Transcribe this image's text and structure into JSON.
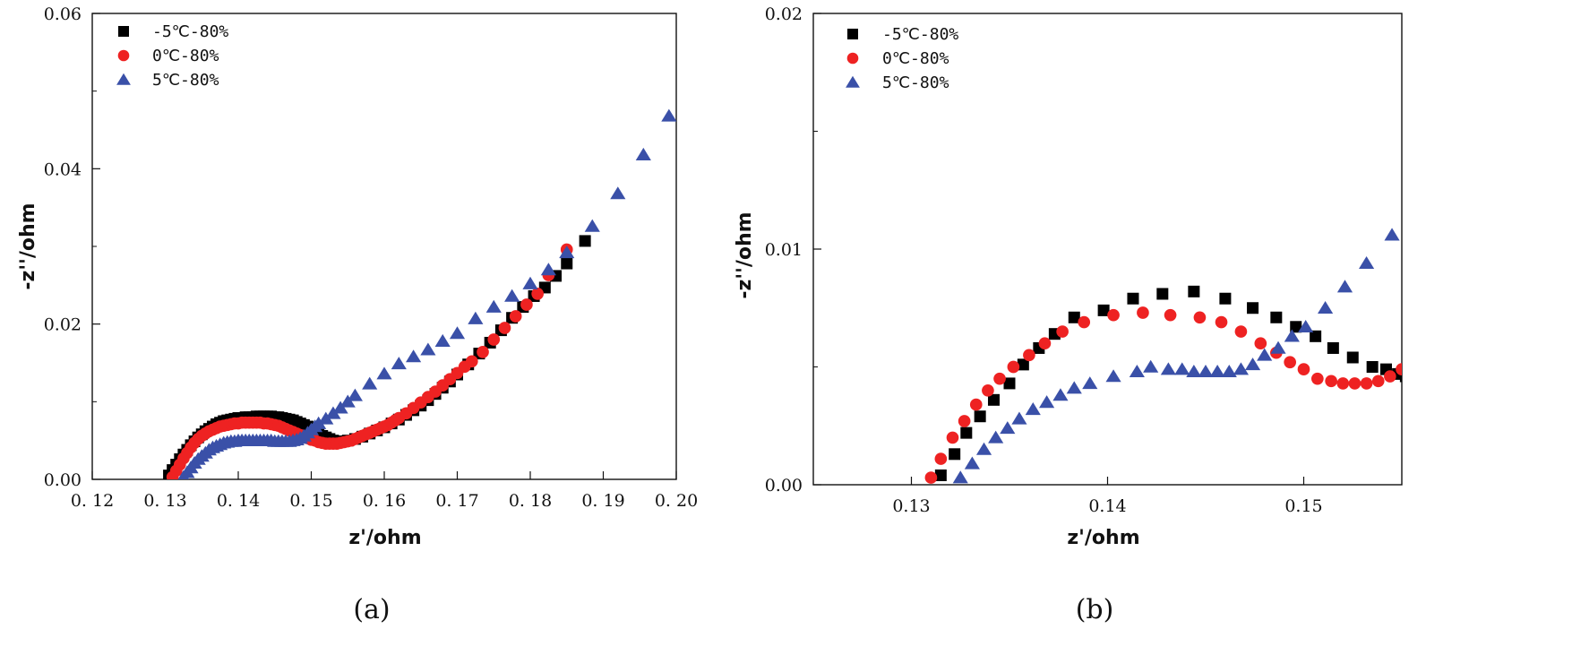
{
  "chart_data": [
    {
      "type": "scatter",
      "panel_label": "(a)",
      "xlabel": "z'/ohm",
      "ylabel": "-z''/ohm",
      "xlim": [
        0.12,
        0.2
      ],
      "ylim": [
        0.0,
        0.06
      ],
      "xticks": [
        "0. 12",
        "0. 13",
        "0. 14",
        "0. 15",
        "0. 16",
        "0. 17",
        "0. 18",
        "0. 19",
        "0. 20"
      ],
      "yticks": [
        "0.00",
        "0.02",
        "0.04",
        "0.06"
      ],
      "legend_position": "top-left",
      "series": [
        {
          "name": "-5℃-80%",
          "marker": "square",
          "color": "#000000",
          "x": [
            0.1305,
            0.131,
            0.1315,
            0.132,
            0.1325,
            0.133,
            0.1335,
            0.134,
            0.1345,
            0.135,
            0.1355,
            0.136,
            0.1365,
            0.137,
            0.1375,
            0.138,
            0.1385,
            0.139,
            0.1395,
            0.14,
            0.1405,
            0.141,
            0.1415,
            0.142,
            0.1425,
            0.143,
            0.1435,
            0.144,
            0.1445,
            0.145,
            0.1455,
            0.146,
            0.1465,
            0.147,
            0.1475,
            0.148,
            0.1485,
            0.149,
            0.1495,
            0.15,
            0.1505,
            0.151,
            0.1515,
            0.152,
            0.1525,
            0.153,
            0.154,
            0.155,
            0.156,
            0.157,
            0.158,
            0.159,
            0.16,
            0.161,
            0.162,
            0.163,
            0.164,
            0.165,
            0.166,
            0.167,
            0.168,
            0.169,
            0.17,
            0.1715,
            0.173,
            0.1745,
            0.176,
            0.1775,
            0.179,
            0.1805,
            0.182,
            0.1835,
            0.185,
            0.1875
          ],
          "y": [
            0.0005,
            0.0012,
            0.0019,
            0.0026,
            0.0032,
            0.0038,
            0.0044,
            0.0049,
            0.0054,
            0.0058,
            0.0062,
            0.0065,
            0.0068,
            0.0071,
            0.0073,
            0.0075,
            0.0076,
            0.0077,
            0.0078,
            0.0079,
            0.0079,
            0.008,
            0.008,
            0.008,
            0.0081,
            0.0081,
            0.0081,
            0.0081,
            0.0081,
            0.008,
            0.008,
            0.0079,
            0.0078,
            0.0077,
            0.0076,
            0.0074,
            0.0072,
            0.007,
            0.0068,
            0.0065,
            0.0062,
            0.0059,
            0.0056,
            0.0054,
            0.0052,
            0.005,
            0.0049,
            0.005,
            0.0052,
            0.0055,
            0.0059,
            0.0063,
            0.0067,
            0.0072,
            0.0077,
            0.0083,
            0.0089,
            0.0095,
            0.0102,
            0.011,
            0.0118,
            0.0126,
            0.0135,
            0.0148,
            0.0162,
            0.0176,
            0.0192,
            0.0208,
            0.0222,
            0.0236,
            0.0247,
            0.0262,
            0.0278,
            0.0307
          ]
        },
        {
          "name": "0℃-80%",
          "marker": "circle",
          "color": "#ee2222",
          "x": [
            0.131,
            0.1315,
            0.132,
            0.1325,
            0.133,
            0.1335,
            0.134,
            0.1345,
            0.135,
            0.1355,
            0.136,
            0.1365,
            0.137,
            0.1375,
            0.138,
            0.1385,
            0.139,
            0.1395,
            0.14,
            0.1405,
            0.141,
            0.1415,
            0.142,
            0.1425,
            0.143,
            0.1435,
            0.144,
            0.1445,
            0.145,
            0.1455,
            0.146,
            0.1465,
            0.147,
            0.1475,
            0.148,
            0.1485,
            0.149,
            0.1495,
            0.15,
            0.1505,
            0.151,
            0.1515,
            0.152,
            0.1525,
            0.153,
            0.1535,
            0.154,
            0.1545,
            0.155,
            0.1555,
            0.156,
            0.1565,
            0.157,
            0.1575,
            0.158,
            0.1585,
            0.159,
            0.1595,
            0.16,
            0.1605,
            0.161,
            0.1615,
            0.162,
            0.163,
            0.164,
            0.165,
            0.166,
            0.167,
            0.168,
            0.169,
            0.17,
            0.171,
            0.172,
            0.1735,
            0.175,
            0.1765,
            0.178,
            0.1795,
            0.181,
            0.1825,
            0.185
          ],
          "y": [
            0.0003,
            0.0011,
            0.0019,
            0.0027,
            0.0034,
            0.0041,
            0.0047,
            0.0052,
            0.0056,
            0.0059,
            0.0062,
            0.0064,
            0.0066,
            0.0068,
            0.0069,
            0.007,
            0.0071,
            0.0072,
            0.0072,
            0.0073,
            0.0073,
            0.0073,
            0.0073,
            0.0073,
            0.0073,
            0.0072,
            0.0072,
            0.0071,
            0.007,
            0.0069,
            0.0067,
            0.0065,
            0.0063,
            0.0061,
            0.0059,
            0.0057,
            0.0055,
            0.0053,
            0.0051,
            0.005,
            0.0048,
            0.0047,
            0.0046,
            0.0046,
            0.0046,
            0.0046,
            0.0047,
            0.0048,
            0.0049,
            0.005,
            0.0052,
            0.0054,
            0.0056,
            0.0058,
            0.006,
            0.0062,
            0.0064,
            0.0066,
            0.0068,
            0.007,
            0.0073,
            0.0076,
            0.0079,
            0.0085,
            0.0092,
            0.0099,
            0.0106,
            0.0113,
            0.0121,
            0.0129,
            0.0137,
            0.0145,
            0.0152,
            0.0164,
            0.018,
            0.0195,
            0.021,
            0.0225,
            0.0239,
            0.0263,
            0.0296
          ]
        },
        {
          "name": "5℃-80%",
          "marker": "triangle",
          "color": "#3a50a8",
          "x": [
            0.1325,
            0.133,
            0.1335,
            0.134,
            0.1345,
            0.135,
            0.1355,
            0.136,
            0.1365,
            0.137,
            0.1375,
            0.138,
            0.1385,
            0.139,
            0.1395,
            0.14,
            0.1405,
            0.141,
            0.1415,
            0.142,
            0.1425,
            0.143,
            0.1435,
            0.144,
            0.1445,
            0.145,
            0.1455,
            0.146,
            0.1465,
            0.147,
            0.1475,
            0.148,
            0.1485,
            0.149,
            0.1495,
            0.15,
            0.1505,
            0.151,
            0.152,
            0.153,
            0.154,
            0.155,
            0.156,
            0.158,
            0.16,
            0.162,
            0.164,
            0.166,
            0.168,
            0.17,
            0.1725,
            0.175,
            0.1775,
            0.18,
            0.1825,
            0.185,
            0.1885,
            0.192,
            0.1955,
            0.199
          ],
          "y": [
            0.0003,
            0.0009,
            0.0015,
            0.0021,
            0.0026,
            0.003,
            0.0034,
            0.0038,
            0.0041,
            0.0043,
            0.0045,
            0.0047,
            0.0048,
            0.0049,
            0.0049,
            0.005,
            0.005,
            0.005,
            0.005,
            0.005,
            0.005,
            0.005,
            0.005,
            0.005,
            0.005,
            0.0049,
            0.0049,
            0.0049,
            0.0049,
            0.0049,
            0.005,
            0.0051,
            0.0053,
            0.0056,
            0.006,
            0.0064,
            0.0068,
            0.0072,
            0.0078,
            0.0085,
            0.0092,
            0.01,
            0.0108,
            0.0123,
            0.0136,
            0.0149,
            0.0158,
            0.0167,
            0.0178,
            0.0188,
            0.0207,
            0.0222,
            0.0236,
            0.0252,
            0.027,
            0.0292,
            0.0326,
            0.0368,
            0.0418,
            0.0468
          ]
        }
      ]
    },
    {
      "type": "scatter",
      "panel_label": "(b)",
      "xlabel": "z'/ohm",
      "ylabel": "-z''/ohm",
      "xlim": [
        0.125,
        0.155
      ],
      "ylim": [
        0.0,
        0.02
      ],
      "xticks": [
        "0.13",
        "0.14",
        "0.15"
      ],
      "yticks": [
        "0.00",
        "0.01",
        "0.02"
      ],
      "legend_position": "top-left",
      "series": [
        {
          "name": "-5℃-80%",
          "marker": "square",
          "color": "#000000",
          "x": [
            0.1315,
            0.1322,
            0.1328,
            0.1335,
            0.1342,
            0.135,
            0.1357,
            0.1365,
            0.1373,
            0.1383,
            0.1398,
            0.1413,
            0.1428,
            0.1444,
            0.146,
            0.1474,
            0.1486,
            0.1496,
            0.1506,
            0.1515,
            0.1525,
            0.1535,
            0.1542,
            0.1548,
            0.1552,
            0.1555
          ],
          "y": [
            0.0004,
            0.0013,
            0.0022,
            0.0029,
            0.0036,
            0.0043,
            0.0051,
            0.0058,
            0.0064,
            0.0071,
            0.0074,
            0.0079,
            0.0081,
            0.0082,
            0.0079,
            0.0075,
            0.0071,
            0.0067,
            0.0063,
            0.0058,
            0.0054,
            0.005,
            0.0049,
            0.0047,
            0.0046,
            0.0046
          ]
        },
        {
          "name": "0℃-80%",
          "marker": "circle",
          "color": "#ee2222",
          "x": [
            0.131,
            0.1315,
            0.1321,
            0.1327,
            0.1333,
            0.1339,
            0.1345,
            0.1352,
            0.136,
            0.1368,
            0.1377,
            0.1388,
            0.1403,
            0.1418,
            0.1432,
            0.1447,
            0.1458,
            0.1468,
            0.1478,
            0.1486,
            0.1493,
            0.15,
            0.1507,
            0.1514,
            0.152,
            0.1526,
            0.1532,
            0.1538,
            0.1544,
            0.155
          ],
          "y": [
            0.0003,
            0.0011,
            0.002,
            0.0027,
            0.0034,
            0.004,
            0.0045,
            0.005,
            0.0055,
            0.006,
            0.0065,
            0.0069,
            0.0072,
            0.0073,
            0.0072,
            0.0071,
            0.0069,
            0.0065,
            0.006,
            0.0056,
            0.0052,
            0.0049,
            0.0045,
            0.0044,
            0.0043,
            0.0043,
            0.0043,
            0.0044,
            0.0046,
            0.0049
          ]
        },
        {
          "name": "5℃-80%",
          "marker": "triangle",
          "color": "#3a50a8",
          "x": [
            0.1325,
            0.1331,
            0.1337,
            0.1343,
            0.1349,
            0.1355,
            0.1362,
            0.1369,
            0.1376,
            0.1383,
            0.1391,
            0.1403,
            0.1415,
            0.1422,
            0.1431,
            0.1438,
            0.1444,
            0.145,
            0.1456,
            0.1462,
            0.1468,
            0.1474,
            0.148,
            0.1487,
            0.1494,
            0.1501,
            0.1511,
            0.1521,
            0.1532,
            0.1545
          ],
          "y": [
            0.0003,
            0.0009,
            0.0015,
            0.002,
            0.0024,
            0.0028,
            0.0032,
            0.0035,
            0.0038,
            0.0041,
            0.0043,
            0.0046,
            0.0048,
            0.005,
            0.0049,
            0.0049,
            0.0048,
            0.0048,
            0.0048,
            0.0048,
            0.0049,
            0.0051,
            0.0055,
            0.0058,
            0.0063,
            0.0067,
            0.0075,
            0.0084,
            0.0094,
            0.0106
          ]
        }
      ]
    }
  ]
}
